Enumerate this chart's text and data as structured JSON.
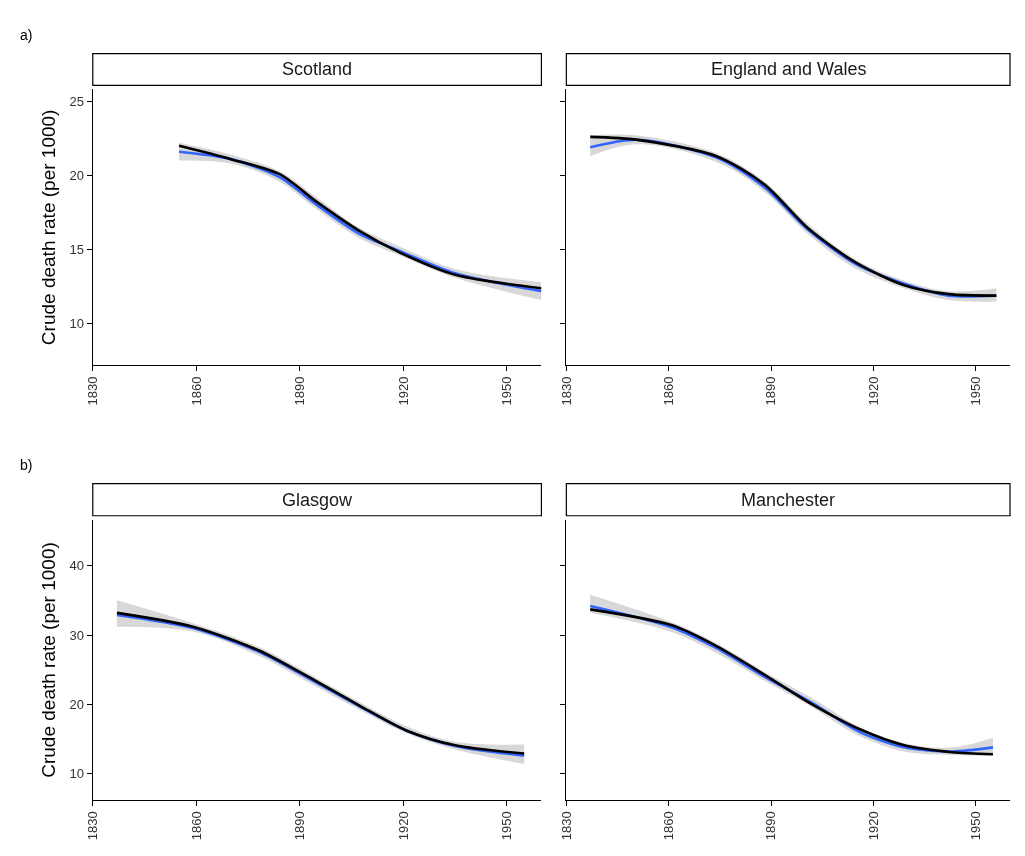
{
  "chart_data": [
    {
      "type": "line",
      "title": "Scotland",
      "ylabel": "Crude death rate (per 1000)",
      "annotations": [
        "a)"
      ],
      "xlim": [
        1830,
        1960
      ],
      "xticks": [
        1830,
        1860,
        1890,
        1920,
        1950
      ],
      "ylim": [
        7.2,
        25.8
      ],
      "yticks": [
        10,
        15,
        20,
        25
      ],
      "series": [
        {
          "color": "#3366ff",
          "x": [
            1855,
            1870,
            1884,
            1895,
            1907,
            1919,
            1935,
            1960
          ],
          "values": [
            21.6,
            21.1,
            19.9,
            18.0,
            16.1,
            14.9,
            13.4,
            12.2
          ],
          "lower": [
            21.0,
            20.8,
            19.6,
            17.7,
            15.8,
            14.6,
            13.1,
            11.6
          ],
          "upper": [
            22.2,
            21.4,
            20.3,
            18.5,
            16.5,
            15.2,
            13.7,
            12.8
          ]
        },
        {
          "color": "#000000",
          "x": [
            1855,
            1870,
            1884,
            1895,
            1907,
            1919,
            1935,
            1960
          ],
          "values": [
            22.0,
            21.1,
            20.1,
            18.2,
            16.3,
            14.8,
            13.3,
            12.4
          ]
        }
      ]
    },
    {
      "type": "line",
      "title": "England and Wales",
      "tick_labels": "x",
      "xlim": [
        1830,
        1960
      ],
      "xticks": [
        1830,
        1860,
        1890,
        1920,
        1950
      ],
      "ylim": [
        7.2,
        25.8
      ],
      "yticks": [
        10,
        15,
        20,
        25
      ],
      "series": [
        {
          "color": "#3366ff",
          "x": [
            1837,
            1851,
            1874,
            1888,
            1901,
            1915,
            1929,
            1942,
            1956
          ],
          "values": [
            21.9,
            22.4,
            21.2,
            19.2,
            16.3,
            14.0,
            12.7,
            11.9,
            11.9
          ],
          "lower": [
            21.3,
            22.1,
            20.9,
            18.9,
            16.0,
            13.7,
            12.4,
            11.6,
            11.5
          ],
          "upper": [
            22.7,
            22.7,
            21.5,
            19.6,
            16.7,
            14.3,
            12.9,
            12.2,
            12.4
          ]
        },
        {
          "color": "#000000",
          "x": [
            1837,
            1851,
            1874,
            1888,
            1901,
            1915,
            1929,
            1942,
            1956
          ],
          "values": [
            22.6,
            22.4,
            21.3,
            19.4,
            16.4,
            14.1,
            12.6,
            12.0,
            11.9
          ]
        }
      ]
    },
    {
      "type": "line",
      "title": "Glasgow",
      "ylabel": "Crude death rate (per 1000)",
      "annotations": [
        "b)"
      ],
      "xlim": [
        1830,
        1960
      ],
      "xticks": [
        1830,
        1860,
        1890,
        1920,
        1950
      ],
      "ylim": [
        6.2,
        46.6
      ],
      "yticks": [
        10,
        20,
        30,
        40
      ],
      "series": [
        {
          "color": "#3366ff",
          "x": [
            1837,
            1859,
            1878,
            1892,
            1907,
            1921,
            1935,
            1955
          ],
          "values": [
            32.9,
            31.0,
            27.6,
            23.9,
            19.8,
            16.2,
            14.0,
            12.6
          ],
          "lower": [
            31.2,
            30.5,
            27.0,
            23.3,
            19.3,
            15.8,
            13.5,
            11.4
          ],
          "upper": [
            35.0,
            31.7,
            28.3,
            24.6,
            20.4,
            16.8,
            14.6,
            14.2
          ]
        },
        {
          "color": "#000000",
          "x": [
            1837,
            1859,
            1878,
            1892,
            1907,
            1921,
            1935,
            1955
          ],
          "values": [
            33.2,
            31.2,
            27.8,
            24.1,
            19.9,
            16.2,
            14.1,
            12.9
          ]
        }
      ]
    },
    {
      "type": "line",
      "title": "Manchester",
      "tick_labels": "x",
      "xlim": [
        1830,
        1960
      ],
      "xticks": [
        1830,
        1860,
        1890,
        1920,
        1950
      ],
      "ylim": [
        6.2,
        46.6
      ],
      "yticks": [
        10,
        20,
        30,
        40
      ],
      "series": [
        {
          "color": "#3366ff",
          "x": [
            1837,
            1861,
            1874,
            1888,
            1902,
            1916,
            1929,
            1943,
            1955
          ],
          "values": [
            34.2,
            31.1,
            28.1,
            24.0,
            20.2,
            16.0,
            13.8,
            13.2,
            13.8
          ],
          "lower": [
            33.2,
            30.4,
            27.4,
            23.4,
            19.6,
            15.4,
            13.2,
            12.7,
            12.6
          ],
          "upper": [
            35.8,
            31.8,
            28.8,
            24.7,
            20.9,
            16.7,
            14.4,
            13.8,
            15.2
          ]
        },
        {
          "color": "#000000",
          "x": [
            1837,
            1861,
            1874,
            1888,
            1902,
            1916,
            1929,
            1943,
            1955
          ],
          "values": [
            33.7,
            31.4,
            28.4,
            24.3,
            20.0,
            16.4,
            14.1,
            13.1,
            12.8
          ]
        }
      ]
    }
  ]
}
